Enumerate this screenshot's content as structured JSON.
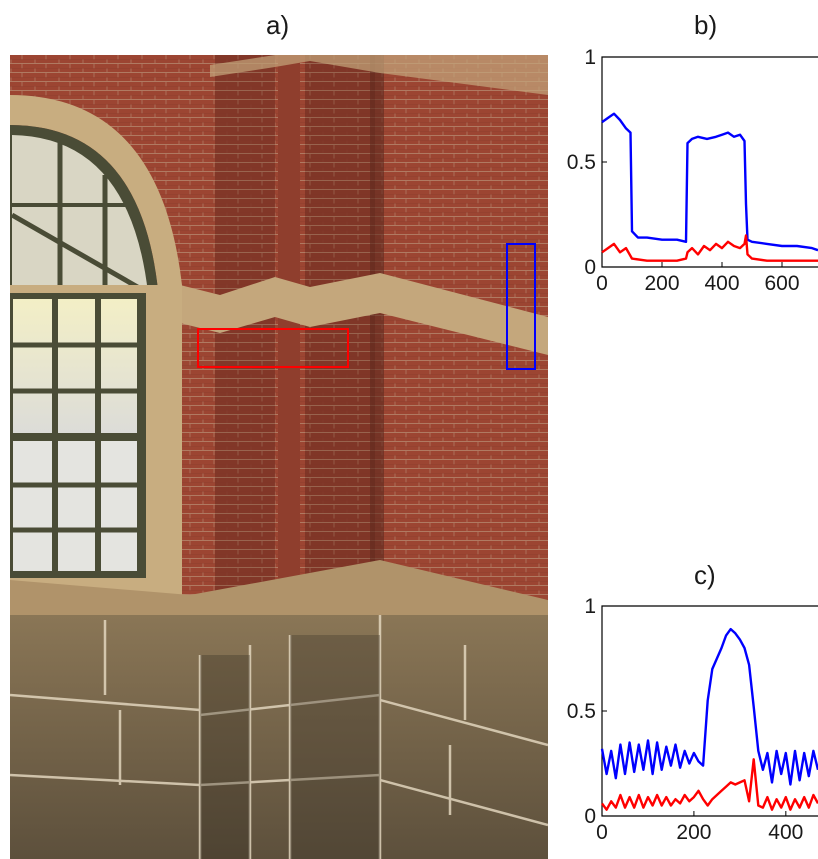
{
  "panels": {
    "a": {
      "label": "a)"
    },
    "b": {
      "label": "b)"
    },
    "c": {
      "label": "c)"
    }
  },
  "photo": {
    "subject": "brick-and-stone building corner with arched window",
    "colors": {
      "brick": "#9c4532",
      "brick_dark": "#7d3426",
      "mortar": "#b07a62",
      "sandstone_band": "#c4a77c",
      "stone_base": "#6e5f48",
      "window_frame": "#4a4c36",
      "glass_light": "#eee9c8",
      "red_box": "#ff0000",
      "blue_box": "#0000ff"
    }
  },
  "chart_data": [
    {
      "type": "line",
      "panel": "b",
      "title": "b)",
      "xlabel": "",
      "ylabel": "",
      "xlim": [
        0,
        720
      ],
      "ylim": [
        0,
        1
      ],
      "xticks": [
        0,
        200,
        400,
        600
      ],
      "yticks": [
        0,
        0.5,
        1
      ],
      "yticklabels": [
        "0",
        "0.5",
        "1"
      ],
      "series": [
        {
          "color": "#0000ff",
          "x": [
            0,
            20,
            40,
            60,
            80,
            95,
            100,
            120,
            150,
            200,
            250,
            280,
            285,
            300,
            320,
            350,
            380,
            400,
            420,
            440,
            460,
            475,
            480,
            485,
            500,
            550,
            600,
            650,
            700,
            720
          ],
          "y": [
            0.69,
            0.71,
            0.73,
            0.7,
            0.66,
            0.64,
            0.17,
            0.14,
            0.14,
            0.13,
            0.13,
            0.12,
            0.59,
            0.61,
            0.62,
            0.61,
            0.62,
            0.63,
            0.64,
            0.62,
            0.63,
            0.6,
            0.3,
            0.13,
            0.12,
            0.11,
            0.1,
            0.1,
            0.09,
            0.08
          ]
        },
        {
          "color": "#ff0000",
          "x": [
            0,
            20,
            40,
            60,
            80,
            100,
            150,
            200,
            250,
            280,
            285,
            300,
            320,
            340,
            360,
            380,
            400,
            420,
            440,
            460,
            475,
            480,
            485,
            500,
            550,
            600,
            650,
            700,
            720
          ],
          "y": [
            0.07,
            0.09,
            0.11,
            0.07,
            0.09,
            0.04,
            0.03,
            0.03,
            0.03,
            0.04,
            0.07,
            0.09,
            0.06,
            0.1,
            0.08,
            0.11,
            0.09,
            0.12,
            0.1,
            0.09,
            0.11,
            0.15,
            0.06,
            0.04,
            0.03,
            0.03,
            0.03,
            0.03,
            0.03
          ]
        }
      ]
    },
    {
      "type": "line",
      "panel": "c",
      "title": "c)",
      "xlabel": "",
      "ylabel": "",
      "xlim": [
        0,
        470
      ],
      "ylim": [
        0,
        1
      ],
      "xticks": [
        0,
        200,
        400
      ],
      "yticks": [
        0,
        0.5,
        1
      ],
      "yticklabels": [
        "0",
        "0.5",
        "1"
      ],
      "series": [
        {
          "color": "#0000ff",
          "x": [
            0,
            10,
            20,
            30,
            40,
            50,
            60,
            70,
            80,
            90,
            100,
            110,
            120,
            130,
            140,
            150,
            160,
            170,
            180,
            190,
            200,
            210,
            220,
            230,
            240,
            250,
            260,
            270,
            280,
            290,
            300,
            310,
            320,
            330,
            340,
            350,
            360,
            370,
            380,
            390,
            400,
            410,
            420,
            430,
            440,
            450,
            460,
            470
          ],
          "y": [
            0.32,
            0.2,
            0.31,
            0.18,
            0.34,
            0.2,
            0.35,
            0.21,
            0.34,
            0.22,
            0.36,
            0.2,
            0.35,
            0.22,
            0.33,
            0.24,
            0.34,
            0.23,
            0.31,
            0.25,
            0.3,
            0.26,
            0.24,
            0.55,
            0.7,
            0.75,
            0.8,
            0.86,
            0.89,
            0.87,
            0.84,
            0.8,
            0.72,
            0.52,
            0.31,
            0.22,
            0.3,
            0.16,
            0.31,
            0.2,
            0.3,
            0.15,
            0.31,
            0.17,
            0.3,
            0.19,
            0.31,
            0.22
          ]
        },
        {
          "color": "#ff0000",
          "x": [
            0,
            10,
            20,
            30,
            40,
            50,
            60,
            70,
            80,
            90,
            100,
            110,
            120,
            130,
            140,
            150,
            160,
            170,
            180,
            190,
            200,
            210,
            220,
            230,
            240,
            250,
            260,
            270,
            280,
            290,
            300,
            310,
            320,
            330,
            340,
            350,
            360,
            370,
            380,
            390,
            400,
            410,
            420,
            430,
            440,
            450,
            460,
            470
          ],
          "y": [
            0.06,
            0.03,
            0.07,
            0.04,
            0.1,
            0.04,
            0.09,
            0.04,
            0.1,
            0.04,
            0.09,
            0.05,
            0.1,
            0.05,
            0.09,
            0.05,
            0.08,
            0.06,
            0.1,
            0.07,
            0.09,
            0.12,
            0.08,
            0.05,
            0.08,
            0.1,
            0.12,
            0.14,
            0.16,
            0.15,
            0.16,
            0.17,
            0.07,
            0.27,
            0.05,
            0.04,
            0.09,
            0.03,
            0.08,
            0.04,
            0.09,
            0.03,
            0.08,
            0.04,
            0.09,
            0.04,
            0.1,
            0.06
          ]
        }
      ]
    }
  ]
}
